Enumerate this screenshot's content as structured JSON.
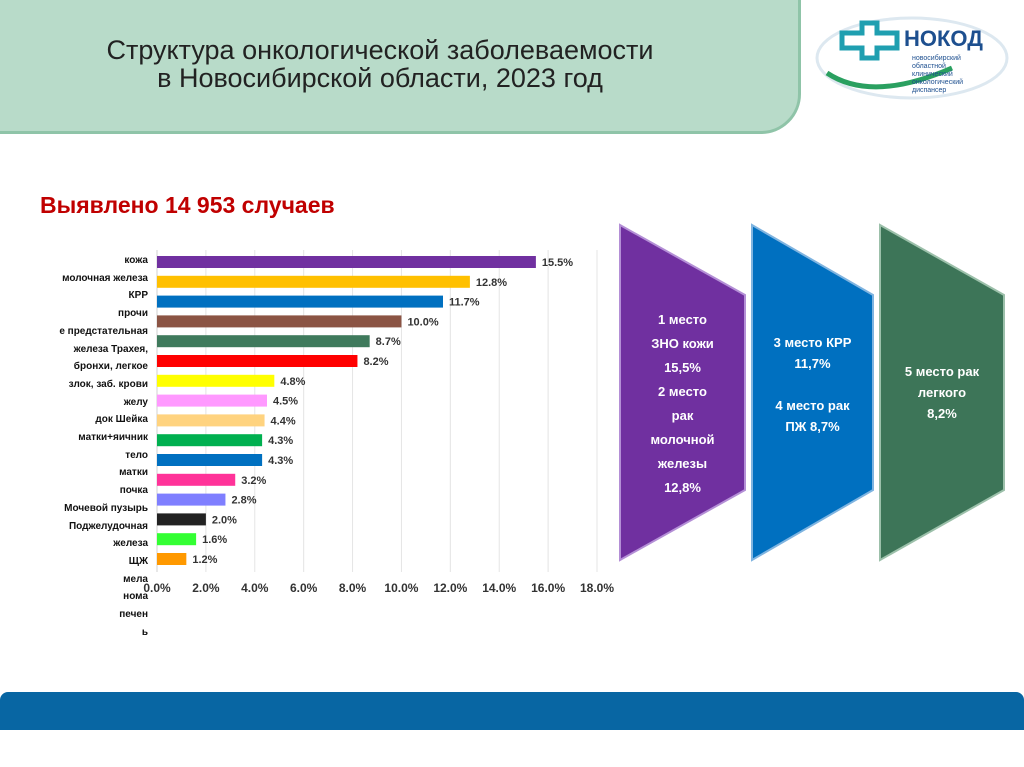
{
  "header": {
    "title_line1": "Структура онкологической заболеваемости",
    "title_line2": "в Новосибирской  области, 2023 год"
  },
  "logo": {
    "name": "НОКОД",
    "text": "новосибирский областной клинический онкологический диспансер"
  },
  "subtitle": "Выявлено 14 953 случаев",
  "chart_data": {
    "type": "bar",
    "orientation": "horizontal",
    "axis_label_lines": [
      "кожа",
      "молочная железа",
      "КРР",
      "прочи",
      "е  предстательная",
      "железа  Трахея,",
      "бронхи, легкое",
      "злок, заб. крови",
      "желу",
      "док  Шейка",
      "матки+яичник",
      "тело",
      "матки",
      "почка",
      "Мочевой пузырь",
      "Поджелудочная",
      "железа",
      "ЩЖ",
      "мела",
      "нома",
      "печен",
      "ь"
    ],
    "values": [
      15.5,
      12.8,
      11.7,
      10.0,
      8.7,
      8.2,
      4.8,
      4.5,
      4.4,
      4.3,
      4.3,
      3.2,
      2.8,
      2.0,
      1.6,
      1.2
    ],
    "value_labels": [
      "15.5%",
      "12.8%",
      "11.7%",
      "10.0%",
      "8.7%",
      "8.2%",
      "4.8%",
      "4.5%",
      "4.4%",
      "4.3%",
      "4.3%",
      "3.2%",
      "2.8%",
      "2.0%",
      "1.6%",
      "1.2%"
    ],
    "colors": [
      "#7030a0",
      "#ffc000",
      "#0070c0",
      "#8b5444",
      "#3f7a5c",
      "#ff0000",
      "#ffff00",
      "#ff99ff",
      "#ffd37f",
      "#00b050",
      "#0070c0",
      "#ff3399",
      "#7f7fff",
      "#222222",
      "#33ff33",
      "#ff9900"
    ],
    "xticks": [
      "0.0%",
      "2.0%",
      "4.0%",
      "6.0%",
      "8.0%",
      "10.0%",
      "12.0%",
      "14.0%",
      "16.0%",
      "18.0%"
    ],
    "xlim": [
      0,
      18
    ],
    "grid": true
  },
  "chevrons": [
    {
      "color": "#7030a0",
      "lines": [
        "1 место",
        "ЗНО кожи",
        "15,5%",
        "2 место",
        "рак",
        "молочной",
        "железы",
        "12,8%"
      ]
    },
    {
      "color": "#0070c0",
      "lines": [
        "3 место КРР",
        "11,7%",
        "",
        "4 место рак",
        "ПЖ 8,7%"
      ]
    },
    {
      "color": "#3d7558",
      "lines": [
        "5 место рак",
        "легкого",
        "8,2%"
      ]
    }
  ]
}
